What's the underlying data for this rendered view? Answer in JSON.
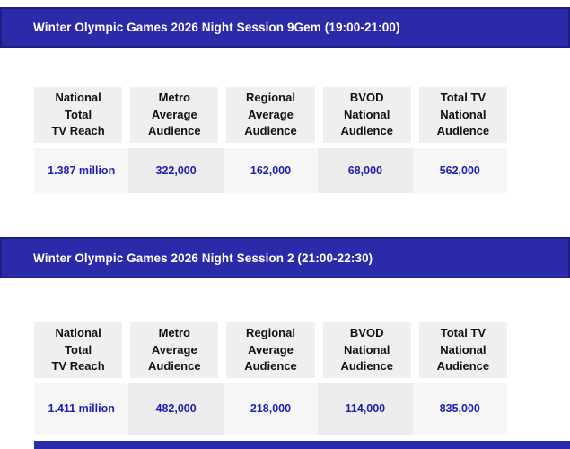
{
  "colors": {
    "bar_background": "#2B2BAA",
    "bar_border": "#1D1D85",
    "bar_text": "#ffffff",
    "header_cell_background": "#efefef",
    "value_cell_light": "#f6f6f6",
    "value_cell_dark": "#ececec",
    "value_text": "#1F1FAE",
    "header_text": "#111111",
    "page_background": "#ffffff"
  },
  "sections": [
    {
      "title": "Winter Olympic Games 2026 Night Session 9Gem (19:00-21:00)",
      "columns": [
        "National\nTotal\nTV Reach",
        "Metro\nAverage\nAudience",
        "Regional\nAverage\nAudience",
        "BVOD\nNational\nAudience",
        "Total TV\nNational\nAudience"
      ],
      "values": [
        "1.387 million",
        "322,000",
        "162,000",
        "68,000",
        "562,000"
      ]
    },
    {
      "title": "Winter Olympic Games 2026 Night Session 2 (21:00-22:30)",
      "columns": [
        "National\nTotal\nTV Reach",
        "Metro\nAverage\nAudience",
        "Regional\nAverage\nAudience",
        "BVOD\nNational\nAudience",
        "Total TV\nNational\nAudience"
      ],
      "values": [
        "1.411 million",
        "482,000",
        "218,000",
        "114,000",
        "835,000"
      ]
    }
  ]
}
